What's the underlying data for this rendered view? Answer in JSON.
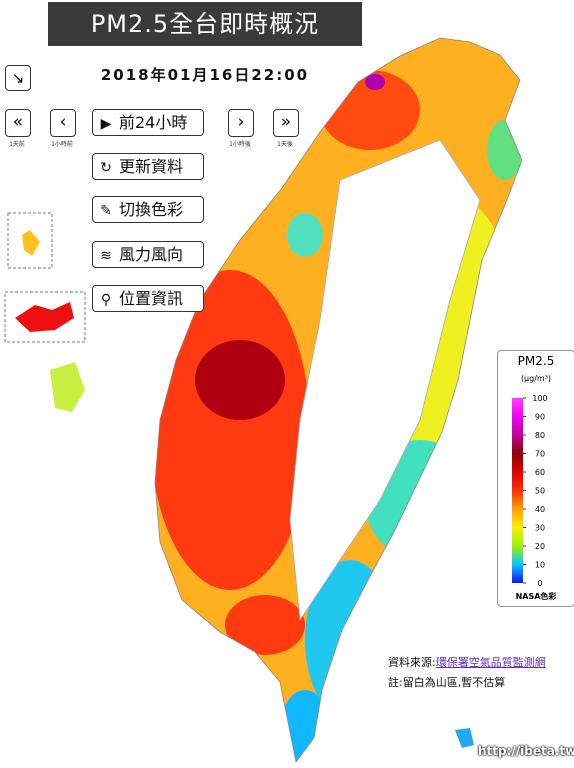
{
  "header": {
    "title": "PM2.5全台即時概況",
    "datetime": "2018年01月16日22:00",
    "corner_icon": "↘"
  },
  "nav": [
    {
      "symbol": "«",
      "label": "1天前"
    },
    {
      "symbol": "‹",
      "label": "1小時前"
    },
    {
      "symbol": "›",
      "label": "1小時後"
    },
    {
      "symbol": "»",
      "label": "1天後"
    }
  ],
  "buttons": [
    {
      "icon": "▶",
      "label": "前24小時"
    },
    {
      "icon": "↻",
      "label": "更新資料"
    },
    {
      "icon": "✎",
      "label": "切換色彩"
    },
    {
      "icon": "≋",
      "label": "風力風向"
    },
    {
      "icon": "⚲",
      "label": "位置資訊"
    }
  ],
  "legend": {
    "title": "PM2.5",
    "unit": "(μg/m³)",
    "range": [
      0,
      100
    ],
    "ticks": [
      0,
      10,
      20,
      30,
      40,
      50,
      60,
      70,
      80,
      90,
      100
    ],
    "colors": [
      "#1010ff",
      "#00c8ff",
      "#a0f000",
      "#f8f000",
      "#ffa000",
      "#ff3000",
      "#e00000",
      "#900000",
      "#c000a0",
      "#f000f0",
      "#ff40ff"
    ],
    "scheme": "NASA色彩"
  },
  "footer": {
    "source_label": "資料來源:",
    "source_link": "環保署空氣品質監測網",
    "note": "註:留白為山區,暫不估算"
  },
  "watermark": "http://ibeta.tw"
}
